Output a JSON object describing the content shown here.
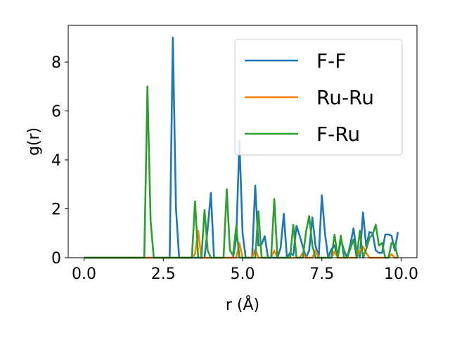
{
  "chart_data": {
    "type": "line",
    "xlabel": "r (Å)",
    "ylabel": "g(r)",
    "xlim": [
      -0.5,
      10.5
    ],
    "ylim": [
      0,
      9.5
    ],
    "xticks": [
      0.0,
      2.5,
      5.0,
      7.5,
      10.0
    ],
    "xtick_labels": [
      "0.0",
      "2.5",
      "5.0",
      "7.5",
      "10.0"
    ],
    "yticks": [
      0,
      2,
      4,
      6,
      8
    ],
    "ytick_labels": [
      "0",
      "2",
      "4",
      "6",
      "8"
    ],
    "grid": false,
    "legend_position": "top-right",
    "series": [
      {
        "name": "F-F",
        "color": "#1f77b4",
        "x": [
          0.0,
          2.7,
          2.8,
          2.9,
          3.0,
          3.8,
          3.9,
          4.0,
          4.1,
          4.7,
          4.8,
          4.9,
          5.0,
          5.1,
          5.3,
          5.4,
          5.5,
          5.6,
          5.7,
          5.8,
          6.1,
          6.2,
          6.3,
          6.4,
          6.5,
          6.6,
          6.7,
          6.8,
          6.9,
          7.0,
          7.1,
          7.2,
          7.3,
          7.4,
          7.5,
          7.6,
          7.7,
          7.8,
          7.9,
          8.0,
          8.1,
          8.2,
          8.3,
          8.4,
          8.5,
          8.6,
          8.7,
          8.8,
          8.9,
          9.0,
          9.1,
          9.2,
          9.3,
          9.4,
          9.5,
          9.6,
          9.7,
          9.8,
          9.9
        ],
        "y": [
          0.0,
          0.0,
          9.0,
          2.0,
          0.0,
          0.0,
          1.2,
          2.65,
          0.0,
          0.0,
          0.8,
          4.8,
          1.0,
          0.0,
          0.0,
          2.95,
          0.5,
          0.55,
          0.88,
          0.0,
          0.0,
          0.4,
          1.8,
          0.0,
          0.2,
          0.1,
          1.3,
          0.9,
          0.45,
          0.0,
          0.3,
          1.65,
          0.5,
          0.0,
          2.55,
          1.0,
          0.0,
          0.35,
          0.5,
          0.0,
          0.75,
          0.3,
          0.0,
          0.55,
          1.2,
          0.2,
          0.05,
          1.85,
          0.45,
          1.05,
          1.0,
          0.3,
          0.2,
          0.2,
          0.95,
          0.95,
          0.9,
          0.3,
          1.05
        ]
      },
      {
        "name": "Ru-Ru",
        "color": "#ff7f0e",
        "x": [
          0.0,
          3.4,
          3.5,
          3.6,
          3.7,
          4.8,
          4.9,
          5.0,
          5.3,
          5.4,
          5.5,
          5.9,
          6.0,
          6.1,
          6.8,
          6.9,
          7.0,
          7.2,
          7.3,
          7.4,
          7.8,
          7.9,
          8.0,
          8.6,
          8.7,
          8.8,
          8.9,
          9.0,
          9.6,
          9.7,
          9.8,
          9.9
        ],
        "y": [
          0.0,
          0.0,
          0.15,
          1.1,
          0.0,
          0.0,
          0.6,
          0.0,
          0.0,
          0.35,
          0.0,
          0.0,
          0.3,
          0.0,
          0.0,
          0.2,
          0.0,
          0.0,
          0.3,
          0.0,
          0.0,
          0.25,
          0.0,
          0.0,
          0.3,
          0.45,
          0.2,
          0.0,
          0.0,
          0.15,
          0.0,
          0.0
        ]
      },
      {
        "name": "F-Ru",
        "color": "#2ca02c",
        "x": [
          0.0,
          1.9,
          2.0,
          2.1,
          2.2,
          3.4,
          3.5,
          3.6,
          3.7,
          3.8,
          3.9,
          4.0,
          4.4,
          4.5,
          4.6,
          4.7,
          4.8,
          4.9,
          5.4,
          5.5,
          5.6,
          5.9,
          6.0,
          6.1,
          6.5,
          6.6,
          6.7,
          6.9,
          7.0,
          7.1,
          7.2,
          7.3,
          7.4,
          7.8,
          7.9,
          8.0,
          8.1,
          8.2,
          8.3,
          8.5,
          8.6,
          8.7,
          8.8,
          8.9,
          9.0,
          9.1,
          9.2,
          9.3,
          9.4,
          9.5,
          9.6,
          9.7,
          9.8,
          9.9
        ],
        "y": [
          0.0,
          0.0,
          7.0,
          1.5,
          0.0,
          0.0,
          2.3,
          0.0,
          0.0,
          1.95,
          0.3,
          0.0,
          0.0,
          2.8,
          0.3,
          0.1,
          1.3,
          0.0,
          0.0,
          1.9,
          0.0,
          0.0,
          2.4,
          0.0,
          0.0,
          1.35,
          0.0,
          0.0,
          1.05,
          1.7,
          0.5,
          0.0,
          0.0,
          0.0,
          0.95,
          0.0,
          0.9,
          0.0,
          0.0,
          0.75,
          0.0,
          1.1,
          0.0,
          0.35,
          0.8,
          0.95,
          1.35,
          0.5,
          0.6,
          0.0,
          0.0,
          0.6,
          0.55,
          0.0
        ]
      }
    ]
  }
}
